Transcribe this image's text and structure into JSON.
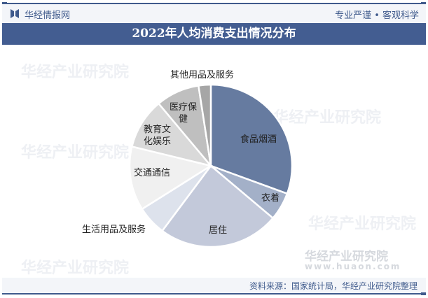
{
  "header": {
    "brand": "华经情报网",
    "slogan": "专业严谨 • 客观科学"
  },
  "title": "2022年人均消费支出情况分布",
  "watermark": {
    "text": "华经产业研究院",
    "url": "www.huaon.com"
  },
  "footer": {
    "source": "资料来源：国家统计局，华经产业研究院整理"
  },
  "chart_data": {
    "type": "pie",
    "title": "2022年人均消费支出情况分布",
    "start_angle": "12 o'clock",
    "direction": "clockwise",
    "categories": [
      "食品烟酒",
      "衣着",
      "居住",
      "生活用品及服务",
      "交通通信",
      "教育文化娱乐",
      "医疗保健",
      "其他用品及服务"
    ],
    "labels": [
      "食品烟酒",
      "衣着",
      "居住",
      "生活用品及服务",
      "交通通信",
      "教育文\n化娱乐",
      "医疗保\n健",
      "其他用品及服务"
    ],
    "values": [
      7481,
      1365,
      5882,
      1432,
      3120,
      2469,
      2120,
      595
    ],
    "colors": [
      "#667ba0",
      "#a3b0c8",
      "#c3c9da",
      "#dde2ec",
      "#f0f0f0",
      "#d9d9d9",
      "#bfbfbf",
      "#a6a6a6"
    ]
  }
}
